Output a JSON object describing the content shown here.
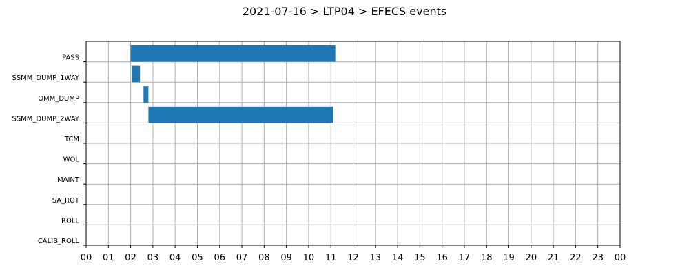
{
  "chart_data": {
    "type": "bar",
    "orientation": "horizontal",
    "title": "2021-07-16 > LTP04 > EFECS events",
    "xlabel": "",
    "ylabel": "",
    "xlim": [
      0,
      24
    ],
    "x_ticks": [
      "00",
      "01",
      "02",
      "03",
      "04",
      "05",
      "06",
      "07",
      "08",
      "09",
      "10",
      "11",
      "12",
      "13",
      "14",
      "15",
      "16",
      "17",
      "18",
      "19",
      "20",
      "21",
      "22",
      "23",
      "00"
    ],
    "categories": [
      "PASS",
      "SSMM_DUMP_1WAY",
      "OMM_DUMP",
      "SSMM_DUMP_2WAY",
      "TCM",
      "WOL",
      "MAINT",
      "SA_ROT",
      "ROLL",
      "CALIB_ROLL"
    ],
    "bar_color": "#1f77b4",
    "grid": true,
    "events": [
      {
        "category": "PASS",
        "start": 2.0,
        "end": 11.2
      },
      {
        "category": "SSMM_DUMP_1WAY",
        "start": 2.05,
        "end": 2.42
      },
      {
        "category": "OMM_DUMP",
        "start": 2.58,
        "end": 2.8
      },
      {
        "category": "SSMM_DUMP_2WAY",
        "start": 2.8,
        "end": 11.1
      }
    ]
  }
}
